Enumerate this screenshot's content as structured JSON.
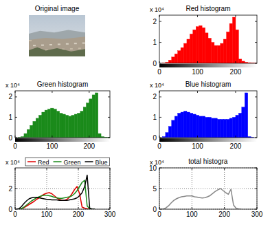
{
  "chart_data": [
    {
      "type": "image",
      "title": "Original image"
    },
    {
      "type": "histogram",
      "title": "Red histogram",
      "annotations": [
        "x 10⁴"
      ],
      "bins": [
        0,
        8,
        16,
        24,
        32,
        40,
        48,
        56,
        64,
        72,
        80,
        88,
        96,
        104,
        112,
        120,
        128,
        136,
        144,
        152,
        160,
        168,
        176,
        184,
        192,
        200,
        208,
        216,
        224,
        232,
        240,
        248,
        256
      ],
      "values": [
        0,
        0.01,
        0.05,
        0.15,
        0.3,
        0.45,
        0.6,
        0.75,
        0.95,
        1.15,
        1.4,
        1.6,
        1.75,
        1.8,
        1.7,
        1.45,
        1.2,
        1.0,
        0.85,
        0.85,
        0.95,
        1.15,
        1.5,
        1.9,
        2.2,
        1.6,
        0.2,
        0.1,
        0.05,
        0.03,
        0.02,
        0.01
      ],
      "color": "#ff0000",
      "xlim": [
        0,
        256
      ],
      "xticks": [
        0,
        100,
        200
      ],
      "ylim": [
        0,
        2.3
      ],
      "yticks": [
        0,
        1,
        2
      ],
      "grid": false
    },
    {
      "type": "histogram",
      "title": "Green histogram",
      "annotations": [
        "x 10⁴"
      ],
      "bins": [
        0,
        8,
        16,
        24,
        32,
        40,
        48,
        56,
        64,
        72,
        80,
        88,
        96,
        104,
        112,
        120,
        128,
        136,
        144,
        152,
        160,
        168,
        176,
        184,
        192,
        200,
        208,
        216,
        224,
        232,
        240,
        248,
        256
      ],
      "values": [
        0,
        0.01,
        0.05,
        0.2,
        0.4,
        0.6,
        0.8,
        0.95,
        1.1,
        1.25,
        1.35,
        1.4,
        1.45,
        1.4,
        1.3,
        1.2,
        1.15,
        1.1,
        1.05,
        1.1,
        1.15,
        1.2,
        1.3,
        1.5,
        1.7,
        1.9,
        2.1,
        2.2,
        0.2,
        0.05,
        0.02,
        0.01
      ],
      "color": "#1a8a1a",
      "xlim": [
        0,
        256
      ],
      "xticks": [
        0,
        100,
        200
      ],
      "ylim": [
        0,
        2.3
      ],
      "yticks": [
        0,
        1,
        2
      ],
      "grid": false
    },
    {
      "type": "histogram",
      "title": "Blue histogram",
      "annotations": [
        "x 10⁴"
      ],
      "bins": [
        0,
        8,
        16,
        24,
        32,
        40,
        48,
        56,
        64,
        72,
        80,
        88,
        96,
        104,
        112,
        120,
        128,
        136,
        144,
        152,
        160,
        168,
        176,
        184,
        192,
        200,
        208,
        216,
        224,
        232,
        240,
        248,
        256
      ],
      "values": [
        0,
        0.05,
        0.25,
        0.55,
        0.85,
        1.05,
        1.2,
        1.25,
        1.3,
        1.25,
        1.2,
        1.15,
        1.1,
        1.05,
        1.05,
        1.0,
        1.0,
        0.95,
        0.95,
        0.9,
        0.9,
        0.9,
        0.9,
        0.95,
        1.0,
        1.1,
        1.2,
        1.5,
        2.2,
        0.05,
        0.01,
        0
      ],
      "color": "#0000ff",
      "xlim": [
        0,
        256
      ],
      "xticks": [
        0,
        100,
        200
      ],
      "ylim": [
        0,
        2.3
      ],
      "yticks": [
        0,
        1,
        2
      ],
      "grid": false
    },
    {
      "type": "line",
      "annotations": [
        "x 10⁴"
      ],
      "x": [
        4,
        12,
        20,
        28,
        36,
        44,
        52,
        60,
        68,
        76,
        84,
        92,
        100,
        108,
        116,
        124,
        132,
        140,
        148,
        156,
        164,
        172,
        180,
        188,
        196,
        204,
        212,
        220,
        228,
        236,
        244,
        252
      ],
      "series": [
        {
          "name": "Red",
          "color": "#e00000",
          "values": [
            0,
            0.01,
            0.05,
            0.15,
            0.3,
            0.45,
            0.6,
            0.75,
            0.95,
            1.1,
            1.3,
            1.45,
            1.55,
            1.6,
            1.5,
            1.3,
            1.1,
            0.95,
            0.85,
            0.85,
            0.95,
            1.15,
            1.5,
            1.9,
            2.2,
            1.5,
            0.2,
            0.1,
            0.05,
            0.03,
            0.02,
            0.01
          ]
        },
        {
          "name": "Green",
          "color": "#1a8a1a",
          "values": [
            0,
            0.01,
            0.05,
            0.2,
            0.4,
            0.6,
            0.8,
            0.95,
            1.1,
            1.2,
            1.3,
            1.35,
            1.35,
            1.3,
            1.25,
            1.15,
            1.1,
            1.05,
            1.05,
            1.1,
            1.15,
            1.2,
            1.3,
            1.5,
            1.8,
            2.2,
            2.6,
            2.8,
            0.3,
            0.05,
            0.02,
            0.01
          ]
        },
        {
          "name": "Blue",
          "color": "#000000",
          "values": [
            0,
            0.05,
            0.25,
            0.55,
            0.8,
            1.0,
            1.1,
            1.15,
            1.15,
            1.1,
            1.05,
            1.0,
            0.95,
            0.95,
            0.9,
            0.9,
            0.9,
            0.85,
            0.85,
            0.85,
            0.85,
            0.9,
            0.95,
            1.0,
            1.1,
            1.3,
            1.6,
            2.2,
            3.3,
            0.1,
            0.01,
            0
          ]
        }
      ],
      "xlim": [
        0,
        300
      ],
      "xticks": [
        0,
        100,
        200,
        300
      ],
      "ylim": [
        0,
        4
      ],
      "yticks": [
        0,
        2
      ],
      "grid": true,
      "legend": "top"
    },
    {
      "type": "line",
      "title": "total histogra",
      "annotations": [
        "x 10⁴"
      ],
      "x": [
        4,
        12,
        20,
        28,
        36,
        44,
        52,
        60,
        68,
        76,
        84,
        92,
        100,
        108,
        116,
        124,
        132,
        140,
        148,
        156,
        164,
        172,
        180,
        188,
        196,
        204,
        212,
        220,
        228,
        236,
        244,
        252
      ],
      "values": [
        0,
        0.05,
        0.3,
        0.8,
        1.5,
        2.1,
        2.5,
        2.8,
        3.0,
        3.1,
        3.2,
        3.2,
        3.2,
        3.0,
        2.9,
        2.8,
        2.7,
        2.8,
        3.0,
        3.3,
        3.8,
        4.3,
        4.7,
        5.0,
        4.5,
        4.0,
        3.6,
        4.8,
        1.0,
        0.2,
        0.05,
        0
      ],
      "color": "#888888",
      "xlim": [
        0,
        300
      ],
      "xticks": [
        0,
        100,
        200,
        300
      ],
      "ylim": [
        0,
        10
      ],
      "yticks": [
        0,
        5,
        10
      ],
      "grid": true
    }
  ]
}
